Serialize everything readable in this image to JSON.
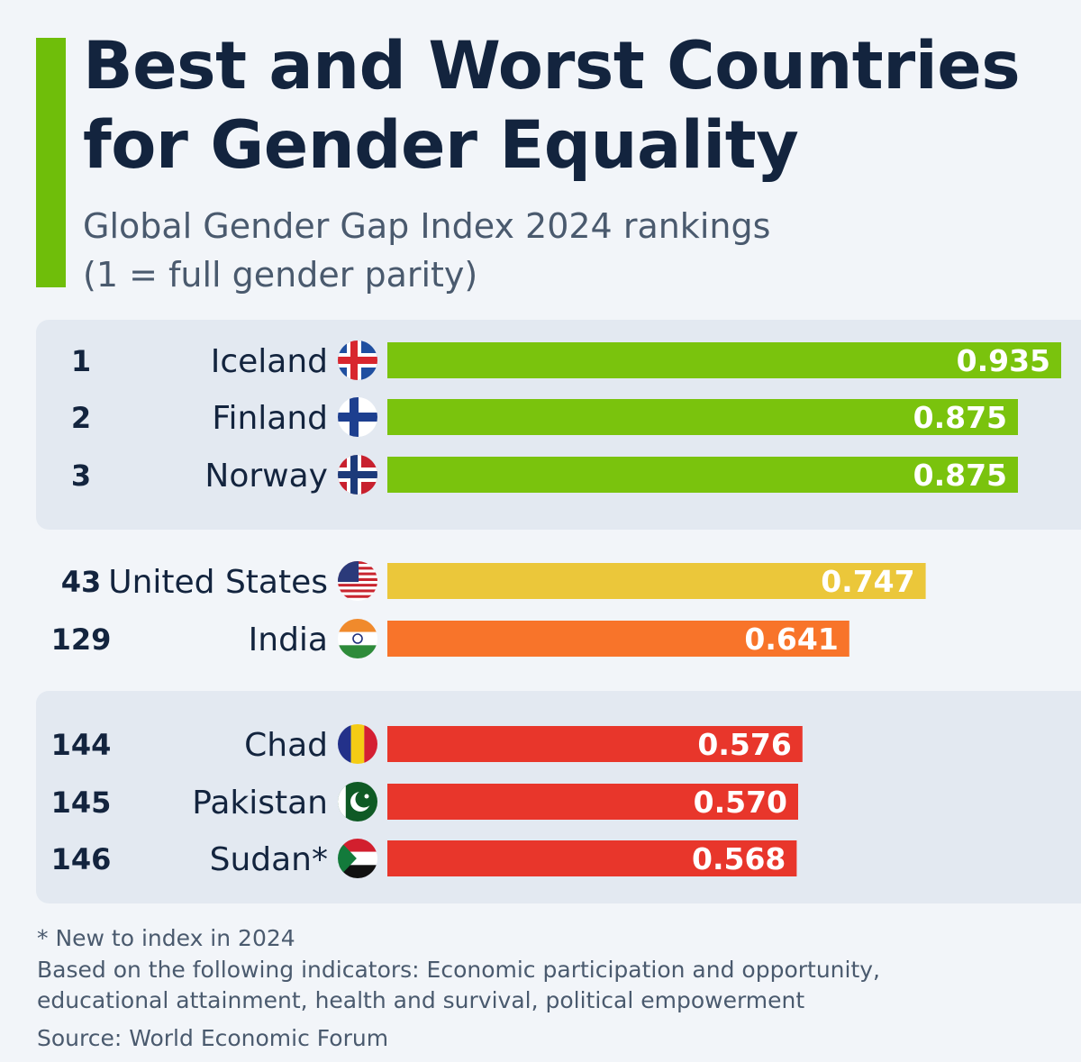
{
  "title_lines": [
    "Best and Worst Countries",
    "for Gender Equality"
  ],
  "subtitle_lines": [
    "Global Gender Gap Index 2024 rankings",
    "(1 = full gender parity)"
  ],
  "colors": {
    "accent": "#6fbe0a",
    "top": "#7ac30d",
    "us": "#ebc73a",
    "india": "#f8742a",
    "bottom": "#e8362b"
  },
  "chart_data": {
    "type": "bar",
    "orientation": "horizontal",
    "title": "Best and Worst Countries for Gender Equality",
    "subtitle": "Global Gender Gap Index 2024 rankings (1 = full gender parity)",
    "xlim": [
      0,
      0.935
    ],
    "grid": false,
    "rows": [
      {
        "rank": "1",
        "country": "Iceland",
        "value": 0.935,
        "label": "0.935",
        "color_key": "top",
        "flag": "iceland-flag-icon"
      },
      {
        "rank": "2",
        "country": "Finland",
        "value": 0.875,
        "label": "0.875",
        "color_key": "top",
        "flag": "finland-flag-icon"
      },
      {
        "rank": "3",
        "country": "Norway",
        "value": 0.875,
        "label": "0.875",
        "color_key": "top",
        "flag": "norway-flag-icon"
      },
      {
        "rank": "43",
        "country": "United States",
        "value": 0.747,
        "label": "0.747",
        "color_key": "us",
        "flag": "usa-flag-icon"
      },
      {
        "rank": "129",
        "country": "India",
        "value": 0.641,
        "label": "0.641",
        "color_key": "india",
        "flag": "india-flag-icon"
      },
      {
        "rank": "144",
        "country": "Chad",
        "value": 0.576,
        "label": "0.576",
        "color_key": "bottom",
        "flag": "chad-flag-icon"
      },
      {
        "rank": "145",
        "country": "Pakistan",
        "value": 0.57,
        "label": "0.570",
        "color_key": "bottom",
        "flag": "pakistan-flag-icon"
      },
      {
        "rank": "146",
        "country": "Sudan*",
        "value": 0.568,
        "label": "0.568",
        "color_key": "bottom",
        "flag": "sudan-flag-icon"
      }
    ]
  },
  "footnotes": {
    "new_note": "* New to index in 2024",
    "indicators_lines": [
      "Based on the following indicators: Economic participation and opportunity,",
      "educational attainment, health and survival, political empowerment"
    ],
    "source": "Source: World Economic Forum"
  }
}
